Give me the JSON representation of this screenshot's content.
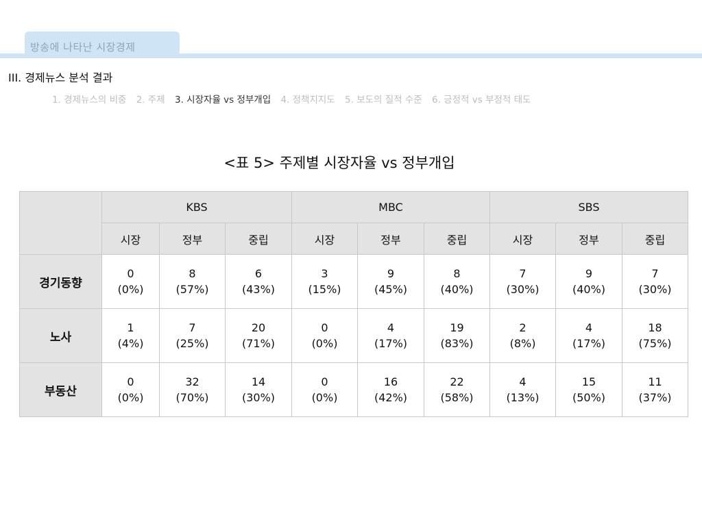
{
  "header": {
    "tab_label": "방송에 나타난 시장경제",
    "section_heading": "III. 경제뉴스 분석 결과"
  },
  "subnav": {
    "items": [
      {
        "label": "1. 경제뉴스의 비중",
        "active": false
      },
      {
        "label": "2. 주제",
        "active": false
      },
      {
        "label": "3. 시장자율 vs 정부개입",
        "active": true
      },
      {
        "label": "4. 정책지지도",
        "active": false
      },
      {
        "label": "5. 보도의 질적 수준",
        "active": false
      },
      {
        "label": "6. 긍정적 vs 부정적 태도",
        "active": false
      }
    ]
  },
  "table": {
    "title": "<표 5> 주제별 시장자율 vs 정부개입",
    "broadcasters": [
      "KBS",
      "MBC",
      "SBS"
    ],
    "stances": [
      "시장",
      "정부",
      "중립"
    ],
    "rows": [
      {
        "label": "경기동향",
        "cells": [
          {
            "count": "0",
            "pct": "(0%)"
          },
          {
            "count": "8",
            "pct": "(57%)"
          },
          {
            "count": "6",
            "pct": "(43%)"
          },
          {
            "count": "3",
            "pct": "(15%)"
          },
          {
            "count": "9",
            "pct": "(45%)"
          },
          {
            "count": "8",
            "pct": "(40%)"
          },
          {
            "count": "7",
            "pct": "(30%)"
          },
          {
            "count": "9",
            "pct": "(40%)"
          },
          {
            "count": "7",
            "pct": "(30%)"
          }
        ]
      },
      {
        "label": "노사",
        "cells": [
          {
            "count": "1",
            "pct": "(4%)"
          },
          {
            "count": "7",
            "pct": "(25%)"
          },
          {
            "count": "20",
            "pct": "(71%)"
          },
          {
            "count": "0",
            "pct": "(0%)"
          },
          {
            "count": "4",
            "pct": "(17%)"
          },
          {
            "count": "19",
            "pct": "(83%)"
          },
          {
            "count": "2",
            "pct": "(8%)"
          },
          {
            "count": "4",
            "pct": "(17%)"
          },
          {
            "count": "18",
            "pct": "(75%)"
          }
        ]
      },
      {
        "label": "부동산",
        "cells": [
          {
            "count": "0",
            "pct": "(0%)"
          },
          {
            "count": "32",
            "pct": "(70%)"
          },
          {
            "count": "14",
            "pct": "(30%)"
          },
          {
            "count": "0",
            "pct": "(0%)"
          },
          {
            "count": "16",
            "pct": "(42%)"
          },
          {
            "count": "22",
            "pct": "(58%)"
          },
          {
            "count": "4",
            "pct": "(13%)"
          },
          {
            "count": "15",
            "pct": "(50%)"
          },
          {
            "count": "11",
            "pct": "(37%)"
          }
        ]
      }
    ]
  }
}
